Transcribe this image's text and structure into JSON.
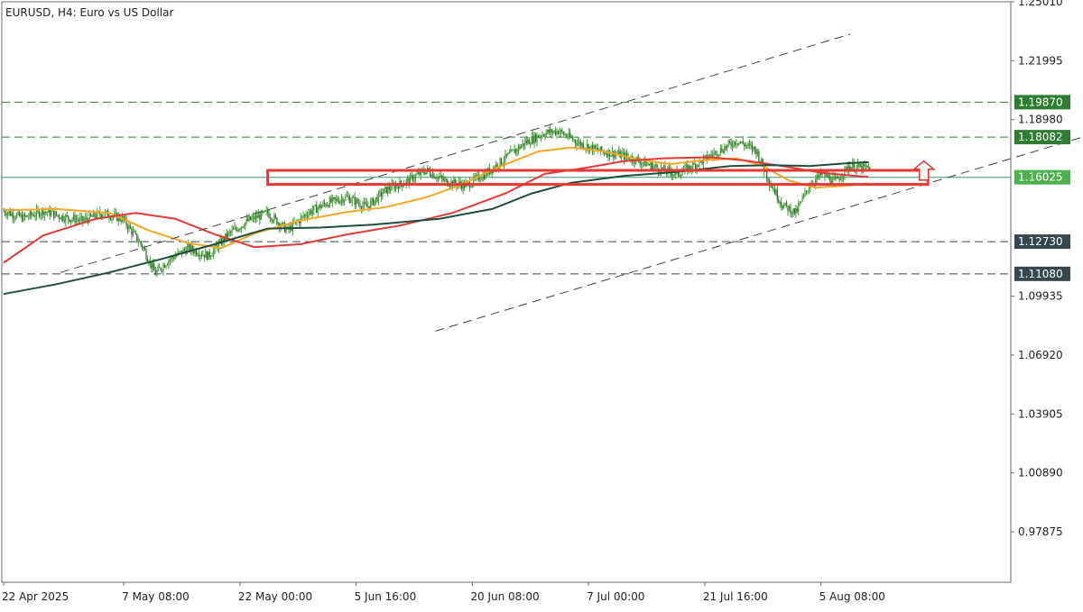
{
  "chart_data": {
    "type": "candlestick",
    "title": "EURUSD, H4:  Euro vs US Dollar",
    "symbol": "EURUSD",
    "timeframe": "H4",
    "ylim": [
      0.9529,
      1.2501
    ],
    "y_ticks": [
      "1.25010",
      "1.21995",
      "1.18980",
      "1.09935",
      "1.06920",
      "1.03905",
      "1.00890",
      "0.97875"
    ],
    "x_ticks": [
      {
        "label": "22 Apr 2025",
        "index": 0
      },
      {
        "label": "7 May 08:00",
        "index": 91
      },
      {
        "label": "22 May 00:00",
        "index": 179
      },
      {
        "label": "5 Jun 16:00",
        "index": 267
      },
      {
        "label": "20 Jun 08:00",
        "index": 355
      },
      {
        "label": "7 Jul 00:00",
        "index": 443
      },
      {
        "label": "21 Jul 16:00",
        "index": 531
      },
      {
        "label": "5 Aug 08:00",
        "index": 619
      }
    ],
    "horizontal_levels": [
      {
        "value": 1.1987,
        "label": "1.19870",
        "style": "dashed",
        "color": "#2e7d32"
      },
      {
        "value": 1.18082,
        "label": "1.18082",
        "style": "dashed",
        "color": "#2e7d32"
      },
      {
        "value": 1.16025,
        "label": "1.16025",
        "style": "solid",
        "color": "#3f8f7a"
      },
      {
        "value": 1.1273,
        "label": "1.12730",
        "style": "dashed",
        "color": "#37474f"
      },
      {
        "value": 1.1108,
        "label": "1.11080",
        "style": "dashed",
        "color": "#37474f"
      }
    ],
    "moving_averages": [
      {
        "color": "#f5a623",
        "points": [
          [
            0,
            1.1434
          ],
          [
            40,
            1.144
          ],
          [
            80,
            1.142
          ],
          [
            110,
            1.133
          ],
          [
            140,
            1.1265
          ],
          [
            165,
            1.124
          ],
          [
            190,
            1.1315
          ],
          [
            225,
            1.1382
          ],
          [
            260,
            1.1425
          ],
          [
            290,
            1.145
          ],
          [
            320,
            1.15
          ],
          [
            345,
            1.156
          ],
          [
            375,
            1.1655
          ],
          [
            405,
            1.1735
          ],
          [
            430,
            1.1755
          ],
          [
            455,
            1.1735
          ],
          [
            480,
            1.1695
          ],
          [
            505,
            1.167
          ],
          [
            530,
            1.169
          ],
          [
            555,
            1.17
          ],
          [
            575,
            1.166
          ],
          [
            595,
            1.1585
          ],
          [
            615,
            1.155
          ],
          [
            640,
            1.156
          ],
          [
            655,
            1.1572
          ]
        ]
      },
      {
        "color": "#e53935",
        "points": [
          [
            0,
            1.1165
          ],
          [
            30,
            1.1305
          ],
          [
            70,
            1.139
          ],
          [
            100,
            1.142
          ],
          [
            130,
            1.139
          ],
          [
            160,
            1.131
          ],
          [
            190,
            1.1245
          ],
          [
            225,
            1.126
          ],
          [
            260,
            1.131
          ],
          [
            300,
            1.1355
          ],
          [
            340,
            1.142
          ],
          [
            380,
            1.152
          ],
          [
            410,
            1.162
          ],
          [
            440,
            1.165
          ],
          [
            470,
            1.1685
          ],
          [
            500,
            1.17
          ],
          [
            535,
            1.1705
          ],
          [
            560,
            1.169
          ],
          [
            590,
            1.166
          ],
          [
            620,
            1.1625
          ],
          [
            645,
            1.161
          ],
          [
            655,
            1.1605
          ]
        ]
      },
      {
        "color": "#1f4e3d",
        "points": [
          [
            0,
            1.1005
          ],
          [
            40,
            1.1055
          ],
          [
            80,
            1.1115
          ],
          [
            120,
            1.1185
          ],
          [
            160,
            1.126
          ],
          [
            200,
            1.134
          ],
          [
            240,
            1.1345
          ],
          [
            280,
            1.136
          ],
          [
            330,
            1.139
          ],
          [
            370,
            1.144
          ],
          [
            400,
            1.152
          ],
          [
            430,
            1.1575
          ],
          [
            470,
            1.161
          ],
          [
            510,
            1.163
          ],
          [
            550,
            1.166
          ],
          [
            580,
            1.1665
          ],
          [
            610,
            1.166
          ],
          [
            640,
            1.1675
          ],
          [
            655,
            1.168
          ]
        ]
      }
    ],
    "channel_lines": [
      {
        "points": [
          [
            43,
            1.1115
          ],
          [
            641,
            1.2335
          ]
        ],
        "style": "dashed",
        "color": "#444444"
      },
      {
        "points": [
          [
            327,
            1.0815
          ],
          [
            818,
            1.181
          ]
        ],
        "style": "dashed",
        "color": "#444444"
      }
    ],
    "highlight_box": {
      "x": [
        200,
        700
      ],
      "y": [
        1.1566,
        1.1638
      ],
      "color": "#e53935"
    },
    "arrow": {
      "index": 697,
      "from": 1.1588,
      "to": 1.1685,
      "direction": "up",
      "color": "#e53935"
    },
    "price_path": [
      [
        0,
        1.143
      ],
      [
        15,
        1.1395
      ],
      [
        30,
        1.143
      ],
      [
        45,
        1.14
      ],
      [
        60,
        1.138
      ],
      [
        75,
        1.142
      ],
      [
        90,
        1.139
      ],
      [
        105,
        1.125
      ],
      [
        115,
        1.111
      ],
      [
        125,
        1.118
      ],
      [
        140,
        1.124
      ],
      [
        155,
        1.12
      ],
      [
        170,
        1.131
      ],
      [
        185,
        1.138
      ],
      [
        200,
        1.142
      ],
      [
        215,
        1.133
      ],
      [
        230,
        1.142
      ],
      [
        245,
        1.147
      ],
      [
        260,
        1.15
      ],
      [
        275,
        1.145
      ],
      [
        290,
        1.154
      ],
      [
        305,
        1.158
      ],
      [
        320,
        1.164
      ],
      [
        335,
        1.158
      ],
      [
        350,
        1.156
      ],
      [
        365,
        1.162
      ],
      [
        380,
        1.17
      ],
      [
        395,
        1.178
      ],
      [
        410,
        1.183
      ],
      [
        420,
        1.184
      ],
      [
        435,
        1.178
      ],
      [
        450,
        1.174
      ],
      [
        465,
        1.172
      ],
      [
        480,
        1.169
      ],
      [
        495,
        1.165
      ],
      [
        510,
        1.162
      ],
      [
        525,
        1.167
      ],
      [
        540,
        1.173
      ],
      [
        555,
        1.179
      ],
      [
        570,
        1.174
      ],
      [
        580,
        1.158
      ],
      [
        590,
        1.146
      ],
      [
        600,
        1.142
      ],
      [
        610,
        1.156
      ],
      [
        620,
        1.162
      ],
      [
        630,
        1.158
      ],
      [
        640,
        1.166
      ],
      [
        650,
        1.165
      ],
      [
        656,
        1.165
      ]
    ]
  }
}
